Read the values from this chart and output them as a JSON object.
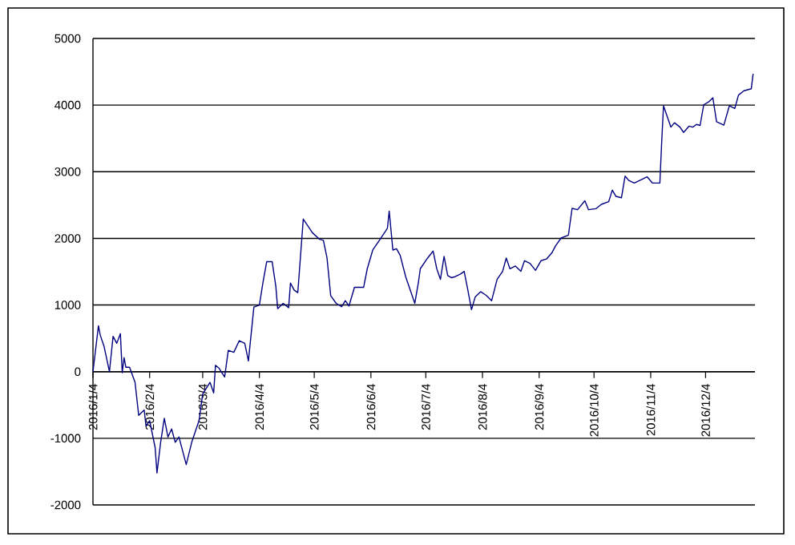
{
  "chart_data": {
    "type": "line",
    "color": "#000080",
    "grid": "y",
    "xlim": [
      "2016-01-04",
      "2016-12-31"
    ],
    "ylim": [
      -2000,
      5000
    ],
    "yticks": [
      -2000,
      -1000,
      0,
      1000,
      2000,
      3000,
      4000,
      5000
    ],
    "xticks": [
      {
        "value": "2016-01-04",
        "label": "2016/1/4"
      },
      {
        "value": "2016-02-04",
        "label": "2016/2/4"
      },
      {
        "value": "2016-03-04",
        "label": "2016/3/4"
      },
      {
        "value": "2016-04-04",
        "label": "2016/4/4"
      },
      {
        "value": "2016-05-04",
        "label": "2016/5/4"
      },
      {
        "value": "2016-06-04",
        "label": "2016/6/4"
      },
      {
        "value": "2016-07-04",
        "label": "2016/7/4"
      },
      {
        "value": "2016-08-04",
        "label": "2016/8/4"
      },
      {
        "value": "2016-09-04",
        "label": "2016/9/4"
      },
      {
        "value": "2016-10-04",
        "label": "2016/10/4"
      },
      {
        "value": "2016-11-04",
        "label": "2016/11/4"
      },
      {
        "value": "2016-12-04",
        "label": "2016/12/4"
      }
    ],
    "x": [
      "2016-01-04",
      "2016-01-07",
      "2016-01-08",
      "2016-01-10",
      "2016-01-13",
      "2016-01-15",
      "2016-01-17",
      "2016-01-19",
      "2016-01-20",
      "2016-01-21",
      "2016-01-22",
      "2016-01-24",
      "2016-01-27",
      "2016-01-29",
      "2016-02-01",
      "2016-02-02",
      "2016-02-04",
      "2016-02-07",
      "2016-02-08",
      "2016-02-10",
      "2016-02-12",
      "2016-02-14",
      "2016-02-16",
      "2016-02-18",
      "2016-02-20",
      "2016-02-24",
      "2016-02-27",
      "2016-03-02",
      "2016-03-04",
      "2016-03-08",
      "2016-03-10",
      "2016-03-11",
      "2016-03-13",
      "2016-03-16",
      "2016-03-18",
      "2016-03-21",
      "2016-03-24",
      "2016-03-27",
      "2016-03-29",
      "2016-04-01",
      "2016-04-04",
      "2016-04-06",
      "2016-04-08",
      "2016-04-11",
      "2016-04-13",
      "2016-04-14",
      "2016-04-17",
      "2016-04-20",
      "2016-04-21",
      "2016-04-23",
      "2016-04-25",
      "2016-04-28",
      "2016-05-03",
      "2016-05-07",
      "2016-05-09",
      "2016-05-11",
      "2016-05-13",
      "2016-05-16",
      "2016-05-19",
      "2016-05-21",
      "2016-05-23",
      "2016-05-26",
      "2016-05-31",
      "2016-06-02",
      "2016-06-05",
      "2016-06-09",
      "2016-06-13",
      "2016-06-14",
      "2016-06-16",
      "2016-06-18",
      "2016-06-20",
      "2016-06-23",
      "2016-06-26",
      "2016-06-28",
      "2016-06-30",
      "2016-07-01",
      "2016-07-05",
      "2016-07-08",
      "2016-07-10",
      "2016-07-12",
      "2016-07-14",
      "2016-07-16",
      "2016-07-18",
      "2016-07-20",
      "2016-07-23",
      "2016-07-25",
      "2016-07-27",
      "2016-07-29",
      "2016-07-31",
      "2016-08-03",
      "2016-08-06",
      "2016-08-09",
      "2016-08-12",
      "2016-08-15",
      "2016-08-17",
      "2016-08-19",
      "2016-08-22",
      "2016-08-25",
      "2016-08-27",
      "2016-08-30",
      "2016-09-02",
      "2016-09-05",
      "2016-09-08",
      "2016-09-11",
      "2016-09-13",
      "2016-09-16",
      "2016-09-20",
      "2016-09-22",
      "2016-09-25",
      "2016-09-29",
      "2016-10-01",
      "2016-10-05",
      "2016-10-08",
      "2016-10-12",
      "2016-10-14",
      "2016-10-16",
      "2016-10-19",
      "2016-10-21",
      "2016-10-23",
      "2016-10-26",
      "2016-10-29",
      "2016-11-02",
      "2016-11-05",
      "2016-11-09",
      "2016-11-10",
      "2016-11-11",
      "2016-11-13",
      "2016-11-15",
      "2016-11-17",
      "2016-11-20",
      "2016-11-22",
      "2016-11-25",
      "2016-11-27",
      "2016-11-29",
      "2016-12-01",
      "2016-12-03",
      "2016-12-06",
      "2016-12-08",
      "2016-12-10",
      "2016-12-14",
      "2016-12-17",
      "2016-12-20",
      "2016-12-22",
      "2016-12-25",
      "2016-12-29",
      "2016-12-30"
    ],
    "values": [
      0,
      690,
      545,
      385,
      0,
      530,
      425,
      570,
      -15,
      210,
      65,
      65,
      -160,
      -655,
      -575,
      -815,
      -735,
      -1140,
      -1520,
      -1060,
      -700,
      -980,
      -860,
      -1060,
      -980,
      -1395,
      -1060,
      -735,
      -335,
      -160,
      -320,
      95,
      50,
      -80,
      320,
      290,
      465,
      425,
      160,
      970,
      1000,
      1345,
      1650,
      1650,
      1280,
      945,
      1025,
      960,
      1330,
      1225,
      1185,
      2290,
      2085,
      1985,
      1970,
      1705,
      1140,
      1025,
      975,
      1065,
      985,
      1265,
      1265,
      1545,
      1825,
      1985,
      2150,
      2410,
      1825,
      1845,
      1745,
      1425,
      1185,
      1025,
      1345,
      1545,
      1705,
      1810,
      1545,
      1385,
      1730,
      1440,
      1410,
      1425,
      1465,
      1505,
      1225,
      930,
      1120,
      1200,
      1145,
      1065,
      1385,
      1505,
      1705,
      1545,
      1585,
      1505,
      1665,
      1625,
      1520,
      1665,
      1690,
      1785,
      1890,
      2005,
      2050,
      2450,
      2430,
      2565,
      2430,
      2445,
      2510,
      2550,
      2725,
      2630,
      2610,
      2935,
      2870,
      2830,
      2870,
      2925,
      2830,
      2830,
      3445,
      3990,
      3830,
      3670,
      3735,
      3670,
      3590,
      3685,
      3670,
      3710,
      3695,
      4005,
      4055,
      4110,
      3750,
      3700,
      3990,
      3950,
      4150,
      4215,
      4245,
      4470
    ]
  }
}
